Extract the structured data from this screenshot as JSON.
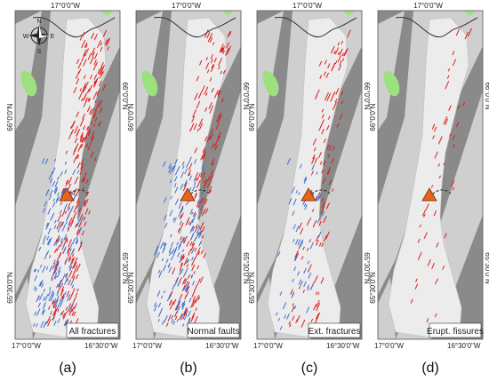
{
  "coords": {
    "top": "17°0'0\"W",
    "bottom_left": "17°0'0\"W",
    "bottom_right": "16°30'0\"W",
    "lat_upper": "66°0'0\"N",
    "lat_lower": "65°30'0\"N"
  },
  "compass": {
    "n": "N",
    "s": "S",
    "e": "E",
    "w": "W"
  },
  "panels": [
    {
      "letter": "(a)",
      "title": "All fractures",
      "show_compass": true,
      "red_density": 1.0,
      "blue_density": 1.0
    },
    {
      "letter": "(b)",
      "title": "Normal faults",
      "show_compass": false,
      "red_density": 0.75,
      "blue_density": 0.9
    },
    {
      "letter": "(c)",
      "title": "Ext. fractures",
      "show_compass": false,
      "red_density": 0.45,
      "blue_density": 0.35
    },
    {
      "letter": "(d)",
      "title": "Erupt. fissures",
      "show_compass": false,
      "red_density": 0.18,
      "blue_density": 0.0
    }
  ],
  "colors": {
    "dark_band": "#8a8a8a",
    "terrain": "#cfcfcf",
    "zone": "#ececec",
    "lake": "#9de07e",
    "red": "#dd1c1c",
    "blue": "#3d6fd1",
    "volcano": "#e8631f"
  }
}
